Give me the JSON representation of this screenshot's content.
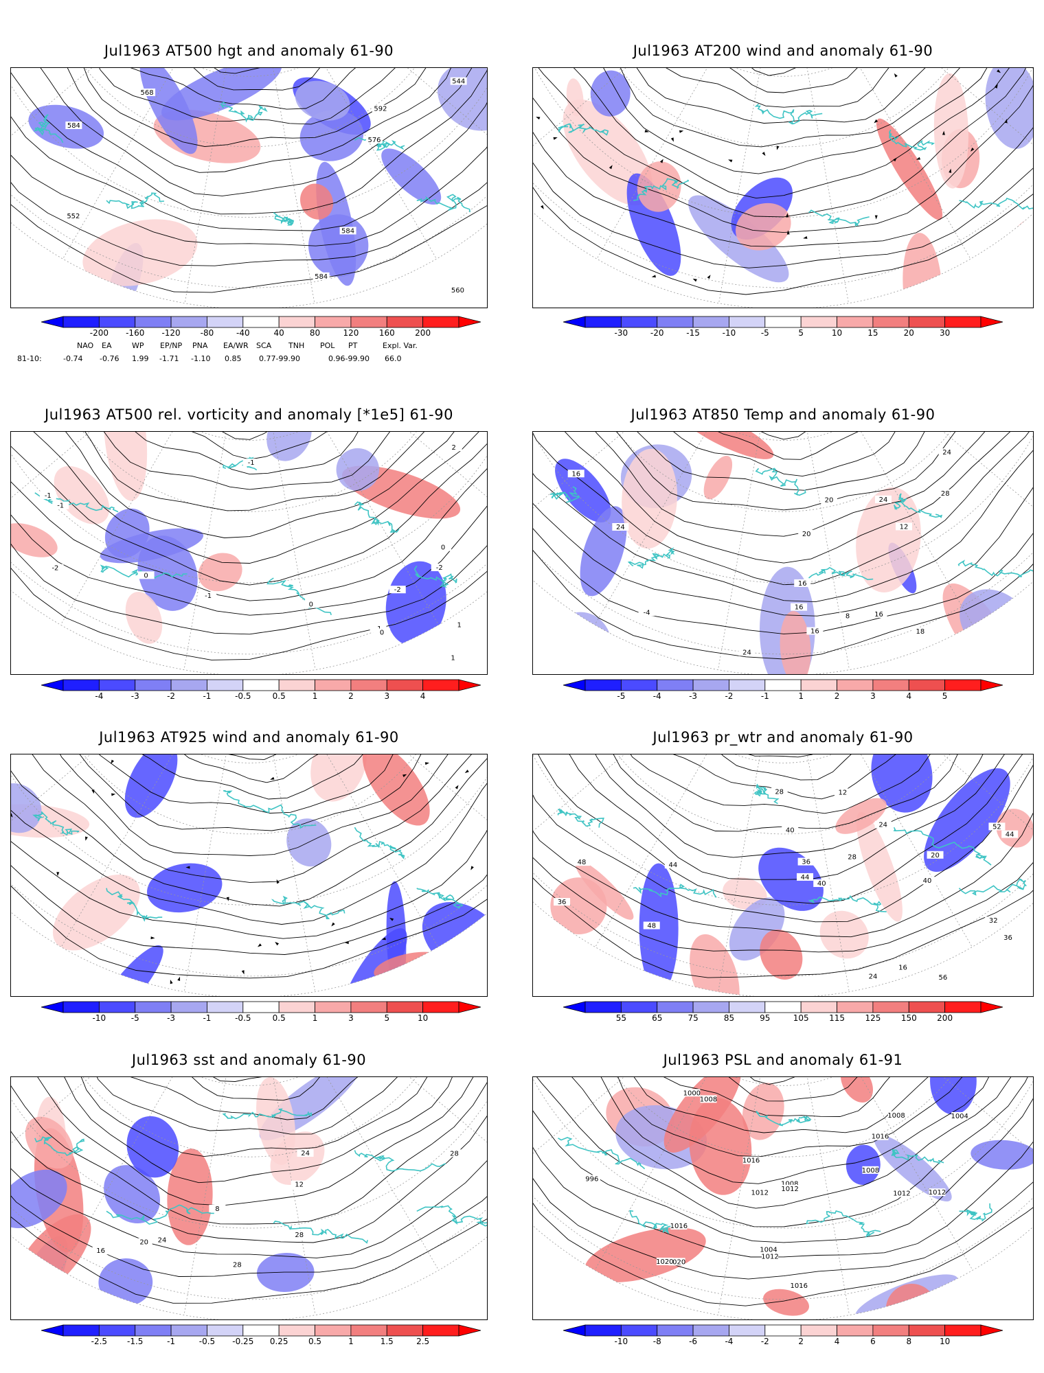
{
  "panels": [
    {
      "id": "p1",
      "title": "Jul1963 AT500 hgt and anomaly 61-90",
      "colorbar": [
        "-200",
        "-160",
        "-120",
        "-80",
        "-40",
        "40",
        "80",
        "120",
        "160",
        "200"
      ],
      "contour_labels": [
        "584",
        "544",
        "552",
        "560",
        "568",
        "576",
        "584",
        "584",
        "592"
      ]
    },
    {
      "id": "p2",
      "title": "Jul1963 AT200 wind and anomaly 61-90",
      "colorbar": [
        "-30",
        "-20",
        "-15",
        "-10",
        "-5",
        "5",
        "10",
        "15",
        "20",
        "30"
      ],
      "contour_labels": []
    },
    {
      "id": "p3",
      "title": "Jul1963 AT500 rel. vorticity and anomaly [*1e5] 61-90",
      "colorbar": [
        "-4",
        "-3",
        "-2",
        "-1",
        "-0.5",
        "0.5",
        "1",
        "2",
        "3",
        "4"
      ],
      "contour_labels": [
        "0",
        "-1",
        "-2",
        "-1",
        "0",
        "-1",
        "1",
        "-2",
        "1",
        "0",
        "-1",
        "2",
        "-2",
        "0",
        "-1"
      ]
    },
    {
      "id": "p4",
      "title": "Jul1963 AT850 Temp and anomaly 61-90",
      "colorbar": [
        "-5",
        "-4",
        "-3",
        "-2",
        "-1",
        "1",
        "2",
        "3",
        "4",
        "5"
      ],
      "contour_labels": [
        "20",
        "-4",
        "24",
        "16",
        "12",
        "16",
        "8",
        "16",
        "20",
        "24",
        "28",
        "24",
        "24",
        "16",
        "16",
        "18"
      ]
    },
    {
      "id": "p5",
      "title": "Jul1963 AT925 wind and anomaly 61-90",
      "colorbar": [
        "-10",
        "-5",
        "-3",
        "-1",
        "-0.5",
        "0.5",
        "1",
        "3",
        "5",
        "10"
      ],
      "contour_labels": []
    },
    {
      "id": "p6",
      "title": "Jul1963 pr_wtr and anomaly 61-90",
      "colorbar": [
        "55",
        "65",
        "75",
        "85",
        "95",
        "105",
        "115",
        "125",
        "150",
        "200"
      ],
      "contour_labels": [
        "40",
        "36",
        "24",
        "12",
        "16",
        "36",
        "32",
        "28",
        "24",
        "20",
        "44",
        "48",
        "40",
        "44",
        "40",
        "36",
        "52",
        "56",
        "48",
        "44",
        "28"
      ]
    },
    {
      "id": "p7",
      "title": "Jul1963 sst and anomaly 61-90",
      "colorbar": [
        "-2.5",
        "-1.5",
        "-1",
        "-0.5",
        "-0.25",
        "0.25",
        "0.5",
        "1",
        "1.5",
        "2.5"
      ],
      "contour_labels": [
        "28",
        "8",
        "12",
        "16",
        "20",
        "24",
        "28",
        "28",
        "24"
      ]
    },
    {
      "id": "p8",
      "title": "Jul1963 PSL and anomaly 61-91",
      "colorbar": [
        "-10",
        "-8",
        "-6",
        "-4",
        "-2",
        "2",
        "4",
        "6",
        "8",
        "10"
      ],
      "contour_labels": [
        "1016",
        "1012",
        "1016",
        "1008",
        "1012",
        "1020",
        "1016",
        "1012",
        "1004",
        "1008",
        "1020",
        "1016",
        "1008",
        "1012",
        "996",
        "1000",
        "1004",
        "1008",
        "1012"
      ]
    }
  ],
  "teleconnections": {
    "headers": [
      "NAO",
      "EA",
      "WP",
      "EP/NP",
      "PNA",
      "EA/WR",
      "SCA",
      "TNH",
      "POL",
      "PT",
      "Expl. Var."
    ],
    "row_label": "81-10:",
    "values": [
      "-0.74",
      "-0.76",
      "1.99",
      "-1.71",
      "-1.10",
      "0.85",
      "0.77-99.90",
      "",
      "0.96-99.90",
      "",
      "66.0"
    ]
  },
  "colors": {
    "blues": [
      "#1f1fff",
      "#4b4bff",
      "#7f7ff5",
      "#a7a7f0",
      "#d3d3f7"
    ],
    "reds": [
      "#fbd3d3",
      "#f8a9a9",
      "#f27f7f",
      "#ee5050",
      "#ff1e1e"
    ],
    "coast": "#3fc4c4"
  }
}
